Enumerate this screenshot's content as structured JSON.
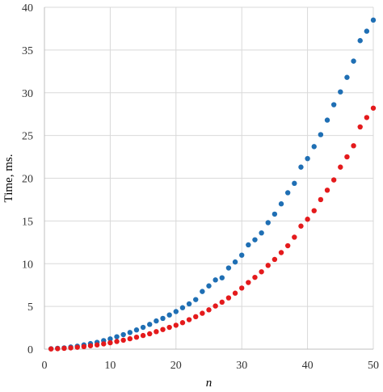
{
  "chart_data": {
    "type": "scatter",
    "title": "",
    "xlabel": "n",
    "ylabel": "Time, ms.",
    "xlim": [
      0,
      50
    ],
    "ylim": [
      0,
      40
    ],
    "xticks": [
      "0",
      "10",
      "20",
      "30",
      "40",
      "50"
    ],
    "yticks": [
      "0",
      "5",
      "10",
      "15",
      "20",
      "25",
      "30",
      "35",
      "40"
    ],
    "grid": true,
    "legend": "none",
    "series": [
      {
        "color": "#1f6fb4",
        "x": [
          1,
          2,
          3,
          4,
          5,
          6,
          7,
          8,
          9,
          10,
          11,
          12,
          13,
          14,
          15,
          16,
          17,
          18,
          19,
          20,
          21,
          22,
          23,
          24,
          25,
          26,
          27,
          28,
          29,
          30,
          31,
          32,
          33,
          34,
          35,
          36,
          37,
          38,
          39,
          40,
          41,
          42,
          43,
          44,
          45,
          46,
          47,
          48,
          49,
          50
        ],
        "y": [
          0.05,
          0.1,
          0.15,
          0.25,
          0.35,
          0.5,
          0.65,
          0.8,
          1.0,
          1.2,
          1.45,
          1.7,
          1.95,
          2.25,
          2.55,
          2.9,
          3.3,
          3.6,
          4.0,
          4.4,
          4.85,
          5.3,
          5.8,
          6.75,
          7.4,
          8.1,
          8.35,
          9.5,
          10.2,
          11.0,
          12.2,
          12.8,
          13.6,
          14.8,
          15.8,
          17.0,
          18.3,
          19.4,
          21.3,
          22.3,
          23.7,
          25.1,
          26.8,
          28.6,
          30.1,
          31.8,
          33.7,
          36.1,
          37.2,
          38.5
        ]
      },
      {
        "color": "#e41a1c",
        "x": [
          1,
          2,
          3,
          4,
          5,
          6,
          7,
          8,
          9,
          10,
          11,
          12,
          13,
          14,
          15,
          16,
          17,
          18,
          19,
          20,
          21,
          22,
          23,
          24,
          25,
          26,
          27,
          28,
          29,
          30,
          31,
          32,
          33,
          34,
          35,
          36,
          37,
          38,
          39,
          40,
          41,
          42,
          43,
          44,
          45,
          46,
          47,
          48,
          49,
          50
        ],
        "y": [
          0.03,
          0.06,
          0.1,
          0.15,
          0.22,
          0.3,
          0.4,
          0.5,
          0.62,
          0.75,
          0.9,
          1.05,
          1.22,
          1.4,
          1.6,
          1.8,
          2.05,
          2.3,
          2.55,
          2.8,
          3.1,
          3.45,
          3.8,
          4.2,
          4.6,
          5.05,
          5.5,
          6.0,
          6.55,
          7.15,
          7.8,
          8.4,
          9.05,
          9.8,
          10.5,
          11.3,
          12.1,
          13.1,
          14.4,
          15.2,
          16.2,
          17.5,
          18.6,
          19.8,
          21.3,
          22.5,
          23.8,
          26.0,
          27.1,
          28.2
        ]
      }
    ]
  }
}
